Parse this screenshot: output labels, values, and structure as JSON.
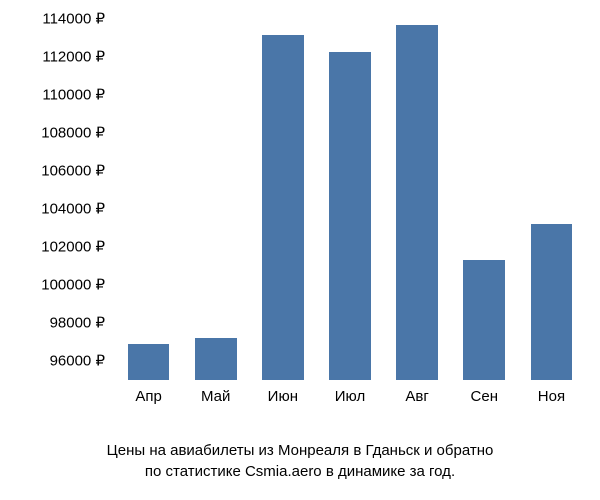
{
  "chart": {
    "type": "bar",
    "categories": [
      "Апр",
      "Май",
      "Июн",
      "Июл",
      "Авг",
      "Сен",
      "Ноя"
    ],
    "values": [
      96900,
      97200,
      113200,
      112300,
      113700,
      101300,
      103200
    ],
    "baseline_value": 95000,
    "bar_color": "#4a76a8",
    "background_color": "#ffffff",
    "text_color": "#000000",
    "ylim": [
      95000,
      114500
    ],
    "ytick_step": 2000,
    "y_ticks": [
      96000,
      98000,
      100000,
      102000,
      104000,
      106000,
      108000,
      110000,
      112000,
      114000
    ],
    "y_tick_labels": [
      "96000 ₽",
      "98000 ₽",
      "100000 ₽",
      "102000 ₽",
      "104000 ₽",
      "106000 ₽",
      "108000 ₽",
      "110000 ₽",
      "112000 ₽",
      "114000 ₽"
    ],
    "bar_width_ratio": 0.62,
    "label_fontsize": 15,
    "caption_fontsize": 15
  },
  "caption": {
    "line1": "Цены на авиабилеты из Монреаля в Гданьск и обратно",
    "line2": "по статистике Csmia.aero в динамике за год."
  }
}
